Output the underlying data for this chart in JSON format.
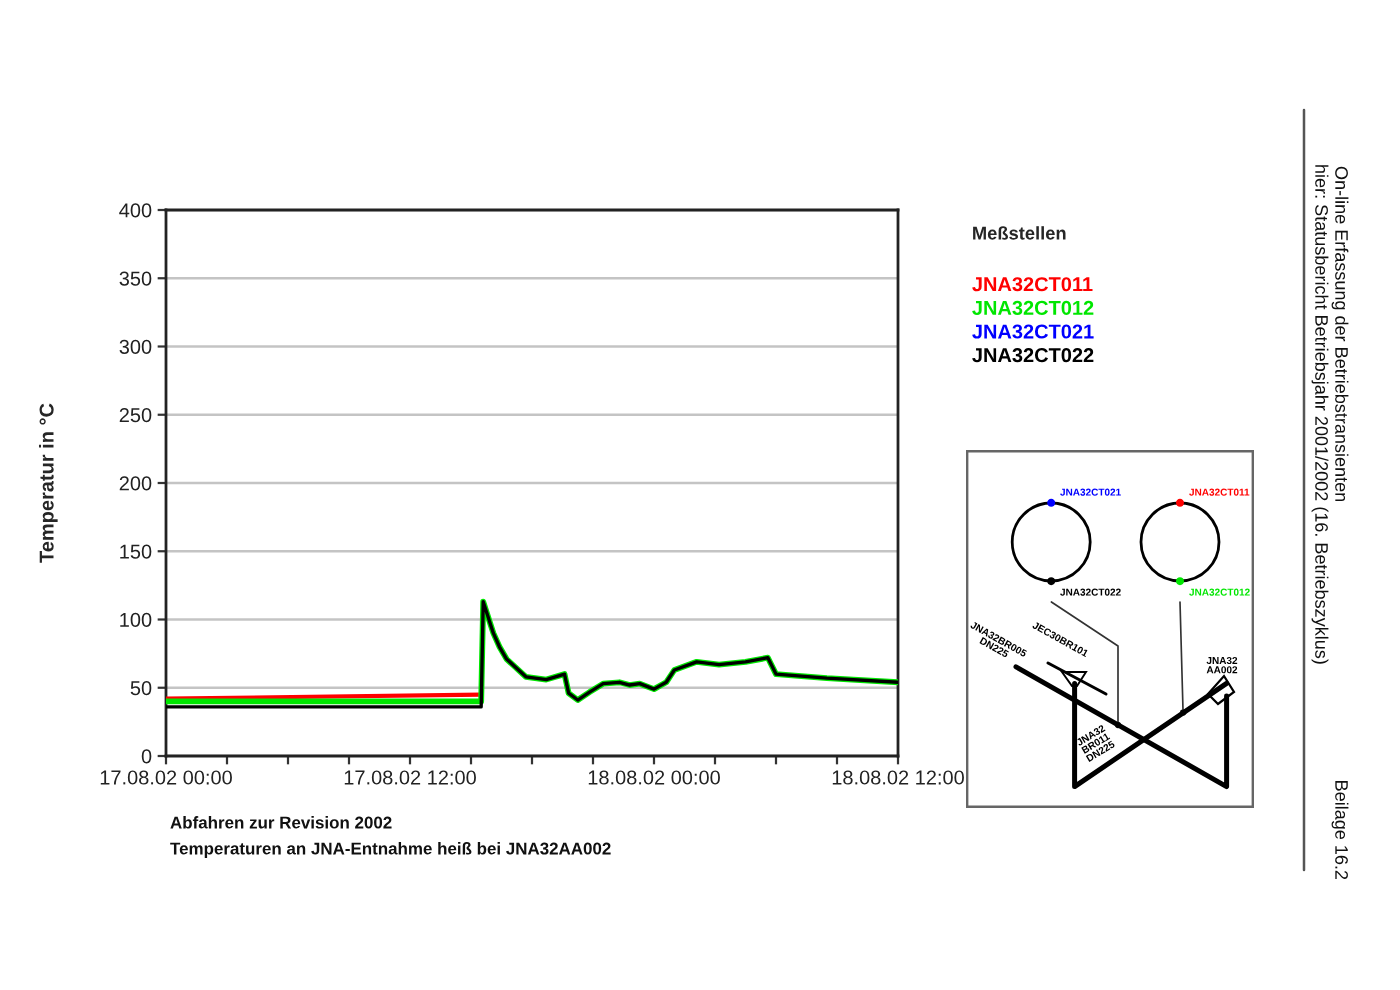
{
  "chart_data": {
    "type": "line",
    "ylabel": "Temperatur in °C",
    "legend_title": "Meßstellen",
    "annotations": [
      "Abfahren zur Revision 2002",
      "Temperaturen an JNA-Entnahme heiß bei JNA32AA002",
      "On-line Erfassung der Betriebstransienten",
      "hier: Statusbericht Betriebsjahr 2001/2002 (16. Betriebszyklus)",
      "Beilage 16.2",
      "JNA32CT021",
      "JNA32CT011",
      "JNA32CT022",
      "JNA32CT012",
      "JEC30BR101",
      "JNA32BR005\nDN225",
      "JNA32\nAA002",
      "JNA32\nBR011\nDN225"
    ],
    "xlim": [
      "2002-08-17T00:00",
      "2002-08-18T12:00"
    ],
    "xticks": [
      {
        "value": "2002-08-17T00:00",
        "label": "17.08.02 00:00"
      },
      {
        "value": "2002-08-17T03:00",
        "label": null
      },
      {
        "value": "2002-08-17T06:00",
        "label": null
      },
      {
        "value": "2002-08-17T09:00",
        "label": null
      },
      {
        "value": "2002-08-17T12:00",
        "label": "17.08.02 12:00"
      },
      {
        "value": "2002-08-17T15:00",
        "label": null
      },
      {
        "value": "2002-08-17T18:00",
        "label": null
      },
      {
        "value": "2002-08-17T21:00",
        "label": null
      },
      {
        "value": "2002-08-18T00:00",
        "label": "18.08.02 00:00"
      },
      {
        "value": "2002-08-18T03:00",
        "label": null
      },
      {
        "value": "2002-08-18T06:00",
        "label": null
      },
      {
        "value": "2002-08-18T09:00",
        "label": null
      },
      {
        "value": "2002-08-18T12:00",
        "label": "18.08.02 12:00"
      }
    ],
    "ylim": [
      0,
      400
    ],
    "yticks": [
      0,
      50,
      100,
      150,
      200,
      250,
      300,
      350,
      400
    ],
    "grid": "y",
    "legend": "top right",
    "line_style": "solid",
    "series": [
      {
        "name": "JNA32CT011",
        "color": "#ff0000",
        "x": [
          "2002-08-17T00:00",
          "2002-08-17T15:30"
        ],
        "values": [
          42,
          45
        ]
      },
      {
        "name": "JNA32CT012",
        "color": "#00e600",
        "x": [
          "2002-08-17T00:00",
          "2002-08-17T15:30",
          "2002-08-17T15:36",
          "2002-08-17T16:06",
          "2002-08-17T16:24",
          "2002-08-17T16:45",
          "2002-08-17T17:42",
          "2002-08-17T18:42",
          "2002-08-17T19:36",
          "2002-08-17T19:48",
          "2002-08-17T20:15",
          "2002-08-17T20:51",
          "2002-08-17T21:30",
          "2002-08-17T22:18",
          "2002-08-17T22:48",
          "2002-08-17T23:18",
          "2002-08-18T00:00",
          "2002-08-18T00:36",
          "2002-08-18T01:00",
          "2002-08-18T02:06",
          "2002-08-18T03:12",
          "2002-08-18T04:30",
          "2002-08-18T05:36",
          "2002-08-18T06:00",
          "2002-08-18T08:30",
          "2002-08-18T12:00"
        ],
        "values": [
          40,
          40,
          113,
          90,
          80,
          71,
          58,
          56,
          60,
          46,
          41,
          47,
          53,
          54,
          52,
          53,
          49,
          54,
          63,
          69,
          67,
          69,
          72,
          60,
          57,
          54
        ]
      },
      {
        "name": "JNA32CT021",
        "color": "#0000ff"
      },
      {
        "name": "JNA32CT022",
        "color": "#000000",
        "x": [
          "2002-08-17T00:00",
          "2002-08-17T15:30",
          "2002-08-17T15:36",
          "2002-08-17T16:06",
          "2002-08-17T16:24",
          "2002-08-17T16:45",
          "2002-08-17T17:42",
          "2002-08-17T18:42",
          "2002-08-17T19:36",
          "2002-08-17T19:48",
          "2002-08-17T20:15",
          "2002-08-17T20:51",
          "2002-08-17T21:30",
          "2002-08-17T22:18",
          "2002-08-17T22:48",
          "2002-08-17T23:18",
          "2002-08-18T00:00",
          "2002-08-18T00:36",
          "2002-08-18T01:00",
          "2002-08-18T02:06",
          "2002-08-18T03:12",
          "2002-08-18T04:30",
          "2002-08-18T05:36",
          "2002-08-18T06:00",
          "2002-08-18T08:30",
          "2002-08-18T12:00"
        ],
        "values": [
          36,
          36,
          113,
          90,
          80,
          71,
          58,
          56,
          60,
          46,
          41,
          47,
          53,
          54,
          52,
          53,
          49,
          54,
          63,
          69,
          67,
          69,
          72,
          60,
          57,
          54
        ]
      }
    ]
  }
}
